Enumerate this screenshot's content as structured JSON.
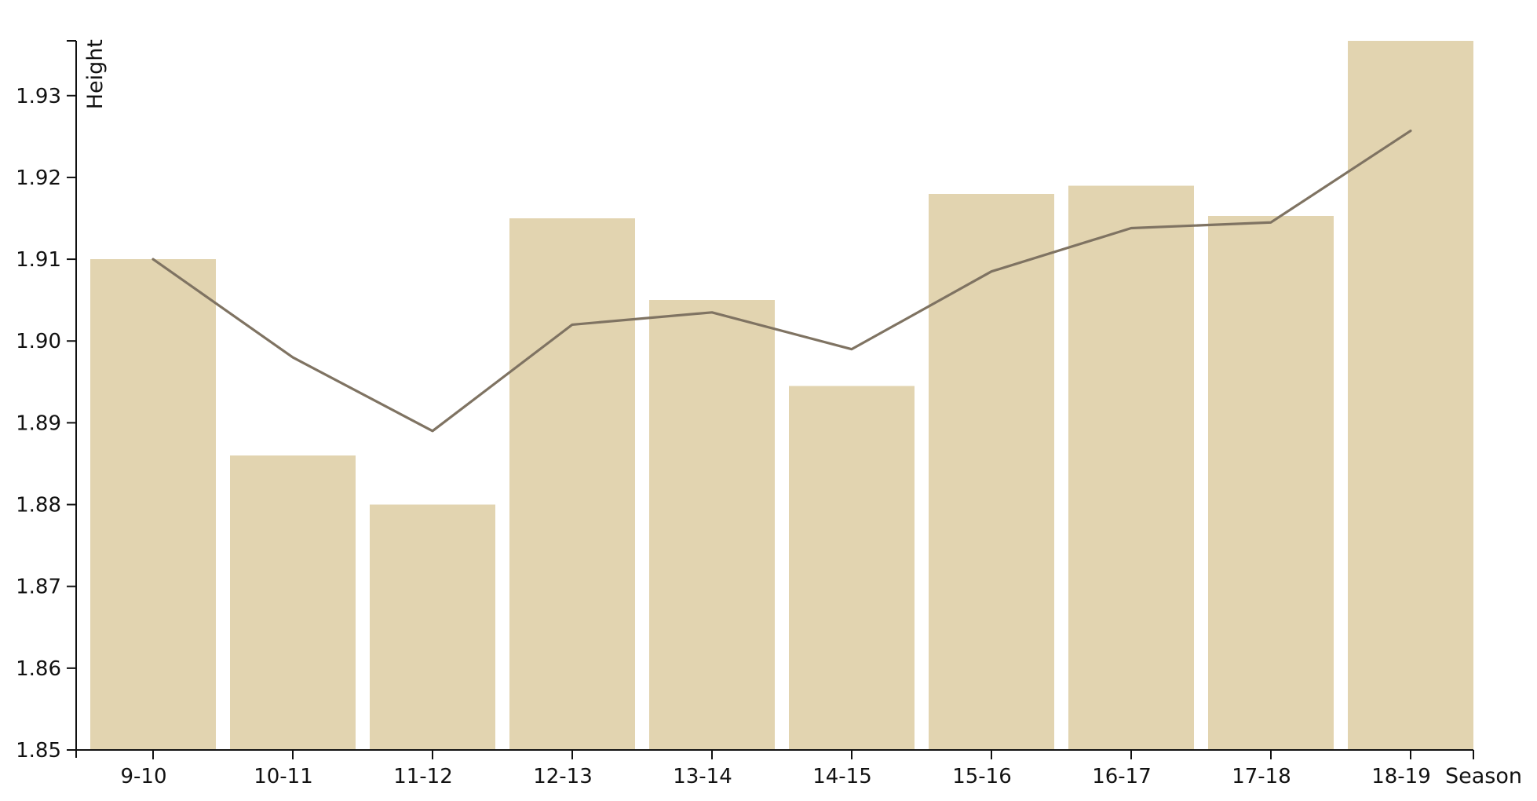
{
  "chart_data": {
    "type": "bar",
    "categories": [
      "9-10",
      "10-11",
      "11-12",
      "12-13",
      "13-14",
      "14-15",
      "15-16",
      "16-17",
      "17-18",
      "18-19"
    ],
    "series": [
      {
        "kind": "bar",
        "values": [
          1.91,
          1.886,
          1.88,
          1.915,
          1.905,
          1.8945,
          1.918,
          1.919,
          1.9153,
          1.9367
        ]
      },
      {
        "kind": "line",
        "values": [
          1.91,
          1.898,
          1.889,
          1.902,
          1.9035,
          1.899,
          1.9085,
          1.9138,
          1.9145,
          1.9257
        ]
      }
    ],
    "xlabel": "Season",
    "ylabel": "Height",
    "ylim": [
      1.85,
      1.9367
    ],
    "yticks": [
      "1.85",
      "1.86",
      "1.87",
      "1.88",
      "1.89",
      "1.90",
      "1.91",
      "1.92",
      "1.93"
    ],
    "grid": false,
    "legend": "none",
    "colors": {
      "bar": "#e2d4b0",
      "line": "#7f7362",
      "axis": "#111111"
    }
  }
}
